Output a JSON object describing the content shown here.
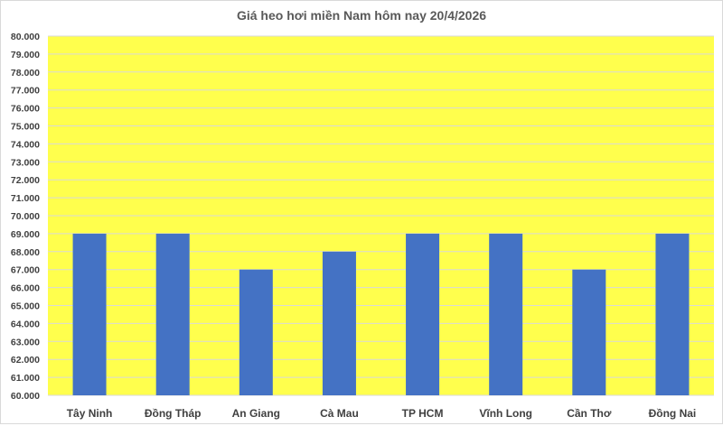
{
  "chart_data": {
    "type": "bar",
    "title": "Giá heo hơi miền Nam hôm nay 20/4/2026",
    "categories": [
      "Tây Ninh",
      "Đồng Tháp",
      "An Giang",
      "Cà Mau",
      "TP HCM",
      "Vĩnh Long",
      "Cần Thơ",
      "Đồng Nai"
    ],
    "values": [
      69000,
      69000,
      67000,
      68000,
      69000,
      69000,
      67000,
      69000
    ],
    "xlabel": "",
    "ylabel": "",
    "ylim": [
      60000,
      80000
    ],
    "ytick_step": 1000,
    "grid": true,
    "legend": "none",
    "colors": {
      "bar": "#4472C4",
      "plot_background": "#FFFF4D",
      "grid": "#D9D9D9"
    }
  }
}
